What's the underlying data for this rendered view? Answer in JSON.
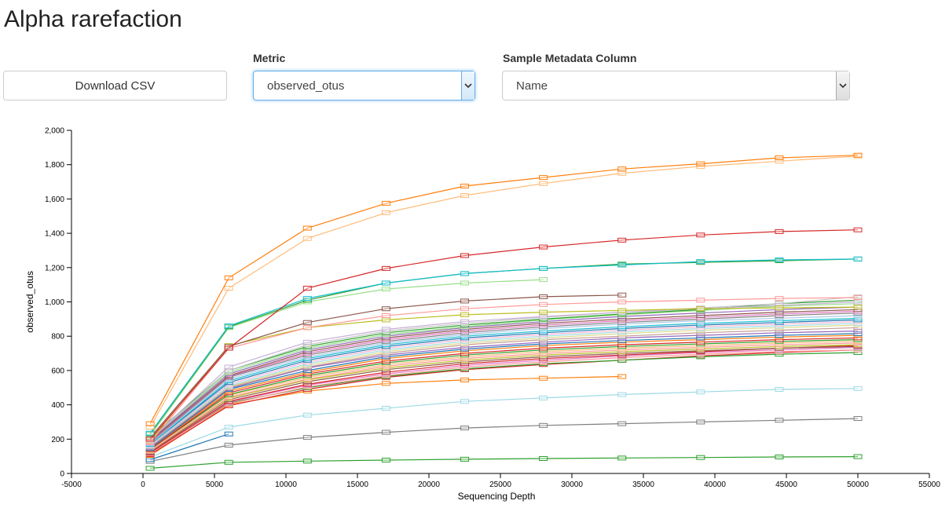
{
  "page": {
    "title": "Alpha rarefaction"
  },
  "controls": {
    "download_label": "Download CSV",
    "metric_label": "Metric",
    "metric_value": "observed_otus",
    "metadata_label": "Sample Metadata Column",
    "metadata_value": "Name"
  },
  "icons": {
    "dropdown": "chevron-down-icon"
  },
  "chart_data": {
    "type": "line",
    "xlabel": "Sequencing Depth",
    "ylabel": "observed_otus",
    "xlim": [
      -5000,
      55000
    ],
    "ylim": [
      0,
      2000
    ],
    "x_ticks": [
      -5000,
      0,
      5000,
      10000,
      15000,
      20000,
      25000,
      30000,
      35000,
      40000,
      45000,
      50000,
      55000
    ],
    "y_ticks": [
      0,
      200,
      400,
      600,
      800,
      1000,
      1200,
      1400,
      1600,
      1800,
      2000
    ],
    "y_tick_labels": [
      "0",
      "200",
      "400",
      "600",
      "800",
      "1,000",
      "1,200",
      "1,400",
      "1,600",
      "1,800",
      "2,000"
    ],
    "grid": false,
    "legend": "none",
    "depths": [
      500,
      6000,
      11500,
      17000,
      22500,
      28000,
      33500,
      39000,
      44500,
      50000
    ],
    "series": [
      {
        "color": "#ff7f0e",
        "values": [
          290,
          1140,
          1430,
          1575,
          1675,
          1725,
          1775,
          1805,
          1840,
          1855
        ]
      },
      {
        "color": "#ffbb78",
        "values": [
          270,
          1080,
          1370,
          1520,
          1620,
          1690,
          1750,
          1790,
          1820,
          1850
        ]
      },
      {
        "color": "#d62728",
        "values": [
          200,
          730,
          1080,
          1195,
          1270,
          1320,
          1360,
          1390,
          1410,
          1420
        ]
      },
      {
        "color": "#17becf",
        "values": [
          235,
          860,
          1020,
          1110,
          1165,
          1195,
          1215,
          1235,
          1245,
          1250
        ]
      },
      {
        "color": "#2ca02c",
        "values": [
          230,
          855,
          1010,
          1110,
          1165,
          1195,
          1220,
          1230,
          1240,
          1250
        ]
      },
      {
        "color": "#98df8a",
        "values": [
          220,
          850,
          1000,
          1075,
          1110,
          1130
        ]
      },
      {
        "color": "#8c564b",
        "values": [
          210,
          740,
          880,
          960,
          1005,
          1030,
          1040
        ]
      },
      {
        "color": "#ff9896",
        "values": [
          180,
          730,
          850,
          920,
          960,
          985,
          1000,
          1010,
          1020,
          1025
        ]
      },
      {
        "color": "#bcbd22",
        "values": [
          190,
          745,
          850,
          895,
          925,
          940,
          950,
          960,
          965,
          970
        ]
      },
      {
        "color": "#c5b0d5",
        "values": [
          200,
          620,
          765,
          840,
          885,
          915,
          940,
          960,
          980,
          1000
        ]
      },
      {
        "color": "#c7c7c7",
        "values": [
          200,
          600,
          750,
          830,
          875,
          910,
          940,
          965,
          990,
          1030
        ]
      },
      {
        "color": "#2ca02c",
        "values": [
          210,
          600,
          740,
          820,
          865,
          900,
          930,
          955,
          990,
          1010
        ]
      },
      {
        "color": "#98df8a",
        "values": [
          200,
          590,
          730,
          810,
          855,
          895,
          925,
          950,
          975,
          990
        ]
      },
      {
        "color": "#9467bd",
        "values": [
          195,
          580,
          720,
          800,
          850,
          885,
          915,
          935,
          955,
          970
        ]
      },
      {
        "color": "#8c564b",
        "values": [
          190,
          570,
          710,
          790,
          840,
          875,
          900,
          920,
          940,
          955
        ]
      },
      {
        "color": "#e377c2",
        "values": [
          185,
          565,
          700,
          780,
          830,
          865,
          890,
          910,
          930,
          945
        ]
      },
      {
        "color": "#7f7f7f",
        "values": [
          180,
          560,
          690,
          770,
          820,
          855,
          880,
          900,
          920,
          935
        ]
      },
      {
        "color": "#aec7e8",
        "values": [
          175,
          550,
          680,
          760,
          810,
          845,
          870,
          890,
          905,
          920
        ]
      },
      {
        "color": "#17becf",
        "values": [
          170,
          540,
          670,
          750,
          800,
          830,
          855,
          875,
          890,
          905
        ]
      },
      {
        "color": "#1f77b4",
        "values": [
          170,
          530,
          660,
          740,
          790,
          820,
          845,
          865,
          880,
          895
        ]
      },
      {
        "color": "#f7b6d2",
        "values": [
          165,
          520,
          650,
          730,
          780,
          810,
          835,
          855,
          870,
          885
        ]
      },
      {
        "color": "#9edae5",
        "values": [
          160,
          510,
          640,
          720,
          770,
          800,
          825,
          845,
          860,
          875
        ]
      },
      {
        "color": "#dbdb8d",
        "values": [
          160,
          505,
          630,
          710,
          760,
          790,
          815,
          835,
          850,
          865
        ]
      },
      {
        "color": "#c49c94",
        "values": [
          155,
          500,
          620,
          700,
          750,
          780,
          800,
          820,
          835,
          850
        ]
      },
      {
        "color": "#9467bd",
        "values": [
          150,
          495,
          615,
          690,
          735,
          765,
          790,
          805,
          820,
          830
        ]
      },
      {
        "color": "#1f77b4",
        "values": [
          145,
          490,
          600,
          680,
          725,
          755,
          775,
          790,
          805,
          815
        ]
      },
      {
        "color": "#ff7f0e",
        "values": [
          145,
          480,
          590,
          670,
          715,
          745,
          765,
          780,
          795,
          805
        ]
      },
      {
        "color": "#d62728",
        "values": [
          140,
          470,
          580,
          655,
          700,
          730,
          750,
          765,
          780,
          790
        ]
      },
      {
        "color": "#2ca02c",
        "values": [
          140,
          460,
          570,
          645,
          690,
          720,
          740,
          755,
          770,
          780
        ]
      },
      {
        "color": "#ffbb78",
        "values": [
          135,
          455,
          560,
          635,
          680,
          710,
          730,
          745,
          760,
          770
        ]
      },
      {
        "color": "#ff9896",
        "values": [
          130,
          445,
          550,
          625,
          670,
          700,
          720,
          735,
          750,
          760
        ]
      },
      {
        "color": "#bcbd22",
        "values": [
          130,
          440,
          545,
          615,
          660,
          690,
          710,
          725,
          740,
          750
        ]
      },
      {
        "color": "#8c564b",
        "values": [
          125,
          430,
          535,
          605,
          650,
          680,
          700,
          715,
          730,
          740
        ]
      },
      {
        "color": "#d62728",
        "values": [
          120,
          420,
          520,
          590,
          640,
          670,
          690,
          710,
          730,
          745
        ]
      },
      {
        "color": "#e377c2",
        "values": [
          120,
          415,
          515,
          580,
          630,
          660,
          685,
          705,
          720,
          735
        ]
      },
      {
        "color": "#ff9896",
        "values": [
          115,
          405,
          505,
          570,
          620,
          650,
          675,
          695,
          710,
          720
        ]
      },
      {
        "color": "#2ca02c",
        "values": [
          115,
          410,
          500,
          565,
          610,
          640,
          660,
          680,
          695,
          705
        ]
      },
      {
        "color": "#d62728",
        "values": [
          110,
          395,
          490,
          560,
          605,
          635,
          660,
          685,
          705,
          720
        ]
      },
      {
        "color": "#ff7f0e",
        "values": [
          105,
          400,
          480,
          525,
          545,
          555,
          565
        ]
      },
      {
        "color": "#1f77b4",
        "values": [
          80,
          230
        ]
      },
      {
        "color": "#9edae5",
        "values": [
          95,
          270,
          340,
          380,
          420,
          440,
          460,
          475,
          490,
          495
        ]
      },
      {
        "color": "#7f7f7f",
        "values": [
          70,
          165,
          210,
          240,
          265,
          280,
          290,
          300,
          310,
          320
        ]
      },
      {
        "color": "#2ca02c",
        "values": [
          30,
          65,
          72,
          78,
          83,
          87,
          90,
          93,
          96,
          98
        ]
      }
    ]
  }
}
